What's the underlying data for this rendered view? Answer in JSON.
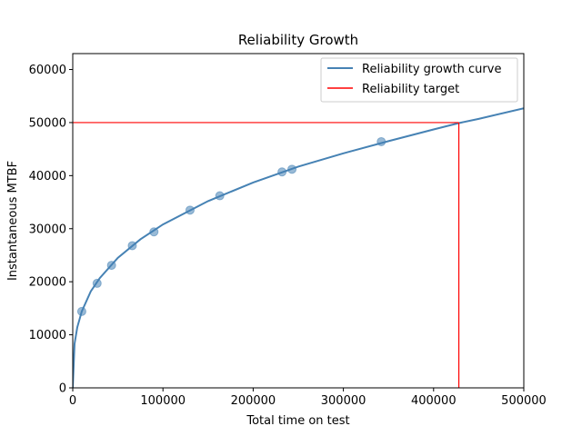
{
  "chart_data": {
    "type": "line",
    "title": "Reliability Growth",
    "xlabel": "Total time on test",
    "ylabel": "Instantaneous MTBF",
    "xlim": [
      0,
      500000
    ],
    "ylim": [
      0,
      63000
    ],
    "xticks": [
      0,
      100000,
      200000,
      300000,
      400000,
      500000
    ],
    "xtick_labels": [
      "0",
      "100000",
      "200000",
      "300000",
      "400000",
      "500000"
    ],
    "yticks": [
      0,
      10000,
      20000,
      30000,
      40000,
      50000,
      60000
    ],
    "ytick_labels": [
      "0",
      "10000",
      "20000",
      "30000",
      "40000",
      "50000",
      "60000"
    ],
    "grid": false,
    "legend_position": "top-right",
    "series": [
      {
        "name": "Reliability growth curve",
        "kind": "line",
        "color": "#4682b4",
        "x": [
          0,
          2000,
          5000,
          10000,
          20000,
          30000,
          50000,
          75000,
          100000,
          150000,
          200000,
          250000,
          300000,
          350000,
          400000,
          428000,
          450000,
          500000
        ],
        "y": [
          0,
          8300,
          11400,
          14400,
          18200,
          20700,
          24500,
          28000,
          30800,
          35200,
          38700,
          41700,
          44200,
          46500,
          48700,
          49900,
          50700,
          52700
        ]
      },
      {
        "name": "Reliability target",
        "kind": "target",
        "color": "#ff0000",
        "target_y": 50000,
        "target_x": 428000
      }
    ],
    "points": {
      "color": "#4682b4",
      "x": [
        10000,
        27000,
        43000,
        66000,
        90000,
        130000,
        163000,
        232000,
        243000,
        342000
      ],
      "y": [
        14400,
        19700,
        23100,
        26800,
        29400,
        33500,
        36200,
        40700,
        41200,
        46400
      ]
    }
  }
}
